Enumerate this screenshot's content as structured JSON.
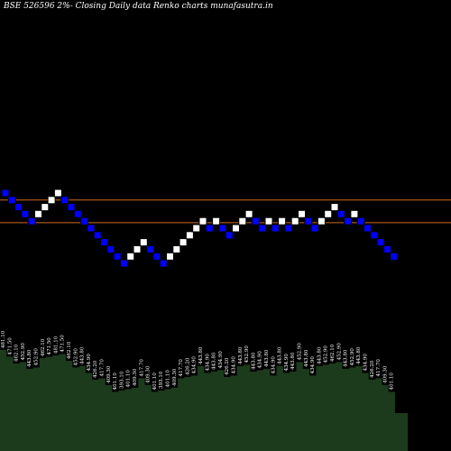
{
  "title": "BSE 526596  2%-  Closing Daily data  Renko  charts munafasutra.in",
  "colors": {
    "background": "#000000",
    "up_brick": "#ffffff",
    "down_brick": "#0000ff",
    "brick_border": "#000000",
    "reference_line": "#d2691e",
    "volume_fill": "#1c3a1c",
    "volume_label": "#ffffff"
  },
  "chart_data": {
    "type": "renko",
    "brick_size_percent": 2,
    "reference_lines": [
      471.5,
      441.9
    ],
    "bricks": [
      {
        "dir": "down",
        "value": 481.1
      },
      {
        "dir": "down",
        "value": 471.5
      },
      {
        "dir": "down",
        "value": 462.1
      },
      {
        "dir": "down",
        "value": 452.9
      },
      {
        "dir": "down",
        "value": 443.8
      },
      {
        "dir": "up",
        "value": 452.9
      },
      {
        "dir": "up",
        "value": 462.1
      },
      {
        "dir": "up",
        "value": 471.5
      },
      {
        "dir": "up",
        "value": 481.1
      },
      {
        "dir": "down",
        "value": 471.5
      },
      {
        "dir": "down",
        "value": 462.1
      },
      {
        "dir": "down",
        "value": 452.9
      },
      {
        "dir": "down",
        "value": 443.8
      },
      {
        "dir": "down",
        "value": 434.9
      },
      {
        "dir": "down",
        "value": 426.2
      },
      {
        "dir": "down",
        "value": 417.7
      },
      {
        "dir": "down",
        "value": 409.3
      },
      {
        "dir": "down",
        "value": 401.1
      },
      {
        "dir": "down",
        "value": 393.1
      },
      {
        "dir": "up",
        "value": 401.1
      },
      {
        "dir": "up",
        "value": 409.3
      },
      {
        "dir": "up",
        "value": 417.7
      },
      {
        "dir": "down",
        "value": 409.3
      },
      {
        "dir": "down",
        "value": 401.1
      },
      {
        "dir": "down",
        "value": 393.1
      },
      {
        "dir": "up",
        "value": 401.1
      },
      {
        "dir": "up",
        "value": 409.3
      },
      {
        "dir": "up",
        "value": 417.7
      },
      {
        "dir": "up",
        "value": 426.2
      },
      {
        "dir": "up",
        "value": 434.9
      },
      {
        "dir": "up",
        "value": 443.8
      },
      {
        "dir": "down",
        "value": 434.9
      },
      {
        "dir": "up",
        "value": 443.8
      },
      {
        "dir": "down",
        "value": 434.9
      },
      {
        "dir": "down",
        "value": 426.2
      },
      {
        "dir": "up",
        "value": 434.9
      },
      {
        "dir": "up",
        "value": 443.8
      },
      {
        "dir": "up",
        "value": 452.9
      },
      {
        "dir": "down",
        "value": 443.8
      },
      {
        "dir": "down",
        "value": 434.9
      },
      {
        "dir": "up",
        "value": 443.8
      },
      {
        "dir": "down",
        "value": 434.9
      },
      {
        "dir": "up",
        "value": 443.8
      },
      {
        "dir": "down",
        "value": 434.9
      },
      {
        "dir": "up",
        "value": 443.8
      },
      {
        "dir": "up",
        "value": 452.9
      },
      {
        "dir": "down",
        "value": 443.8
      },
      {
        "dir": "down",
        "value": 434.9
      },
      {
        "dir": "up",
        "value": 443.8
      },
      {
        "dir": "up",
        "value": 452.9
      },
      {
        "dir": "up",
        "value": 462.1
      },
      {
        "dir": "down",
        "value": 452.9
      },
      {
        "dir": "down",
        "value": 443.8
      },
      {
        "dir": "up",
        "value": 452.9
      },
      {
        "dir": "down",
        "value": 443.8
      },
      {
        "dir": "down",
        "value": 434.9
      },
      {
        "dir": "down",
        "value": 426.2
      },
      {
        "dir": "down",
        "value": 417.7
      },
      {
        "dir": "down",
        "value": 409.3
      },
      {
        "dir": "down",
        "value": 401.1
      }
    ],
    "volume_labels": [
      "481.10",
      "471.50",
      "462.10",
      "452.90",
      "443.80",
      "452.90",
      "462.10",
      "471.50",
      "481.10",
      "471.50",
      "462.10",
      "452.90",
      "443.80",
      "434.90",
      "426.20",
      "417.70",
      "409.30",
      "401.10",
      "393.10",
      "401.10",
      "409.30",
      "417.70",
      "409.30",
      "401.10",
      "393.10",
      "401.10",
      "409.30",
      "417.70",
      "426.20",
      "434.90",
      "443.80",
      "434.90",
      "443.80",
      "434.90",
      "426.20",
      "434.90",
      "443.80",
      "452.90",
      "443.80",
      "434.90",
      "443.80",
      "434.90",
      "443.80",
      "434.90",
      "443.80",
      "452.90",
      "443.80",
      "434.90",
      "443.80",
      "452.90",
      "462.10",
      "452.90",
      "443.80",
      "452.90",
      "443.80",
      "434.90",
      "426.20",
      "417.70",
      "409.30",
      "401.10"
    ]
  }
}
